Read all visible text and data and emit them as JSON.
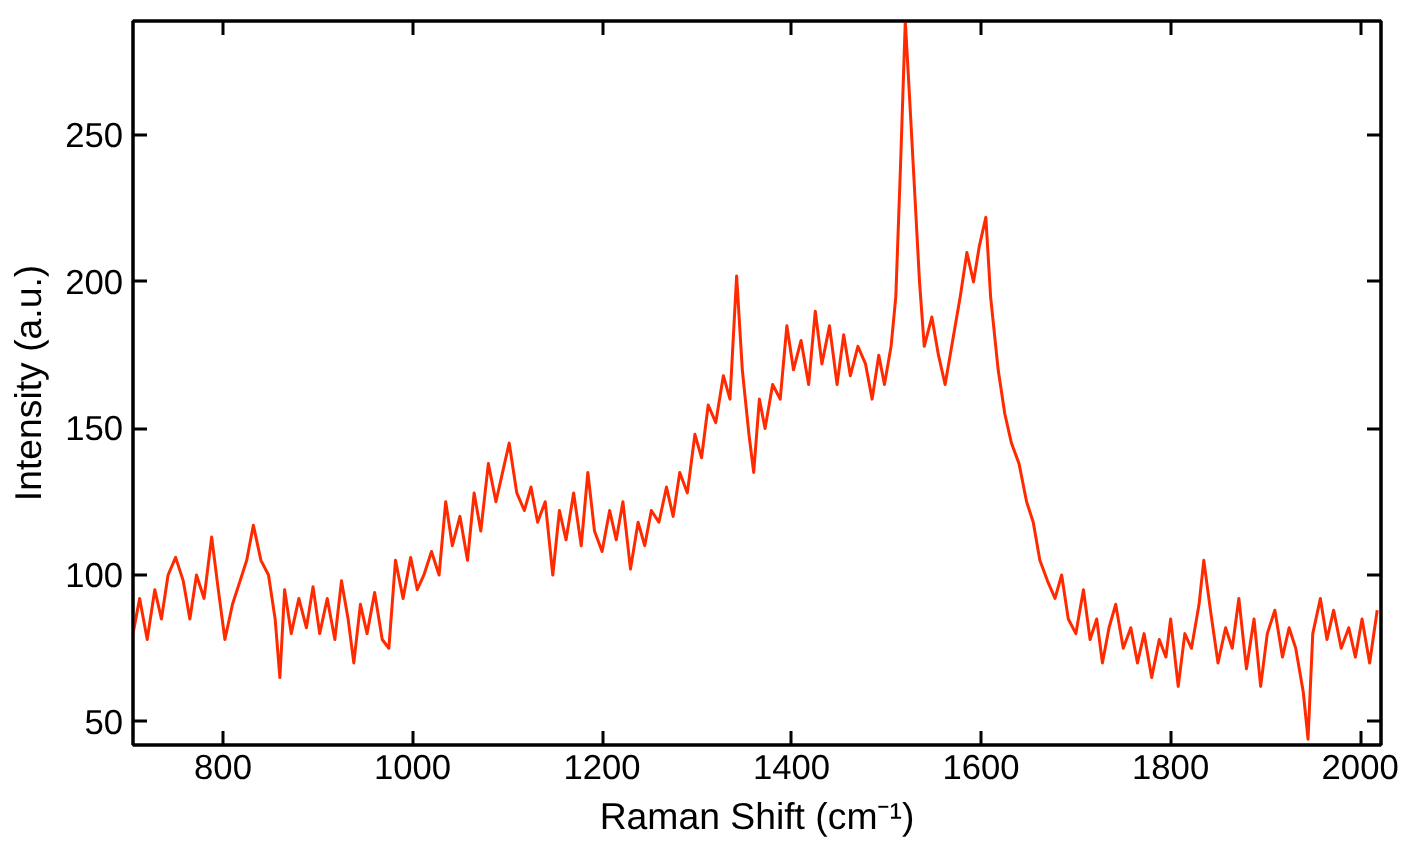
{
  "chart_data": {
    "type": "line",
    "xlabel": "Raman Shift (cm⁻¹)",
    "ylabel": "Intensity (a.u.)",
    "xlim": [
      705,
      2022
    ],
    "ylim": [
      42,
      289
    ],
    "xticks": [
      800,
      1000,
      1200,
      1400,
      1600,
      1800,
      2000
    ],
    "yticks": [
      50,
      100,
      150,
      200,
      250
    ],
    "grid": false,
    "marker": "none",
    "line_style": "solid",
    "x": [
      705,
      712,
      720,
      728,
      735,
      742,
      750,
      758,
      765,
      772,
      780,
      788,
      795,
      802,
      810,
      818,
      825,
      832,
      840,
      848,
      855,
      860,
      865,
      872,
      880,
      888,
      895,
      902,
      910,
      918,
      925,
      932,
      938,
      945,
      952,
      960,
      968,
      975,
      982,
      990,
      998,
      1005,
      1012,
      1020,
      1028,
      1035,
      1042,
      1050,
      1058,
      1065,
      1072,
      1080,
      1088,
      1095,
      1102,
      1110,
      1118,
      1125,
      1132,
      1140,
      1148,
      1155,
      1162,
      1170,
      1178,
      1185,
      1192,
      1200,
      1208,
      1215,
      1222,
      1230,
      1238,
      1245,
      1252,
      1260,
      1268,
      1275,
      1282,
      1290,
      1298,
      1305,
      1312,
      1320,
      1328,
      1335,
      1342,
      1348,
      1355,
      1360,
      1366,
      1372,
      1380,
      1388,
      1395,
      1402,
      1410,
      1418,
      1425,
      1432,
      1440,
      1448,
      1455,
      1462,
      1470,
      1478,
      1485,
      1492,
      1498,
      1505,
      1510,
      1515,
      1520,
      1525,
      1530,
      1535,
      1540,
      1548,
      1555,
      1562,
      1570,
      1578,
      1585,
      1592,
      1598,
      1605,
      1610,
      1618,
      1625,
      1632,
      1640,
      1648,
      1655,
      1662,
      1670,
      1678,
      1685,
      1692,
      1700,
      1708,
      1715,
      1722,
      1728,
      1735,
      1742,
      1750,
      1758,
      1765,
      1772,
      1780,
      1788,
      1795,
      1800,
      1808,
      1815,
      1822,
      1830,
      1835,
      1842,
      1850,
      1858,
      1865,
      1872,
      1880,
      1888,
      1895,
      1902,
      1910,
      1918,
      1925,
      1932,
      1940,
      1945,
      1950,
      1958,
      1965,
      1972,
      1980,
      1988,
      1995,
      2002,
      2010,
      2018
    ],
    "series": [
      {
        "color": "#ff2a00",
        "values": [
          80,
          92,
          78,
          95,
          85,
          100,
          106,
          98,
          85,
          100,
          92,
          113,
          95,
          78,
          90,
          98,
          105,
          117,
          105,
          100,
          85,
          65,
          95,
          80,
          92,
          82,
          96,
          80,
          92,
          78,
          98,
          85,
          70,
          90,
          80,
          94,
          78,
          75,
          105,
          92,
          106,
          95,
          100,
          108,
          100,
          125,
          110,
          120,
          105,
          128,
          115,
          138,
          125,
          135,
          145,
          128,
          122,
          130,
          118,
          125,
          100,
          122,
          112,
          128,
          110,
          135,
          115,
          108,
          122,
          112,
          125,
          102,
          118,
          110,
          122,
          118,
          130,
          120,
          135,
          128,
          148,
          140,
          158,
          152,
          168,
          160,
          202,
          170,
          148,
          135,
          160,
          150,
          165,
          160,
          185,
          170,
          180,
          165,
          190,
          172,
          185,
          165,
          182,
          168,
          178,
          172,
          160,
          175,
          165,
          178,
          195,
          240,
          289,
          260,
          230,
          200,
          178,
          188,
          175,
          165,
          180,
          195,
          210,
          200,
          212,
          222,
          195,
          170,
          155,
          145,
          138,
          125,
          118,
          105,
          98,
          92,
          100,
          85,
          80,
          95,
          78,
          85,
          70,
          82,
          90,
          75,
          82,
          70,
          80,
          65,
          78,
          72,
          85,
          62,
          80,
          75,
          90,
          105,
          88,
          70,
          82,
          75,
          92,
          68,
          85,
          62,
          80,
          88,
          72,
          82,
          75,
          60,
          44,
          80,
          92,
          78,
          88,
          75,
          82,
          72,
          85,
          70,
          88
        ]
      }
    ]
  }
}
